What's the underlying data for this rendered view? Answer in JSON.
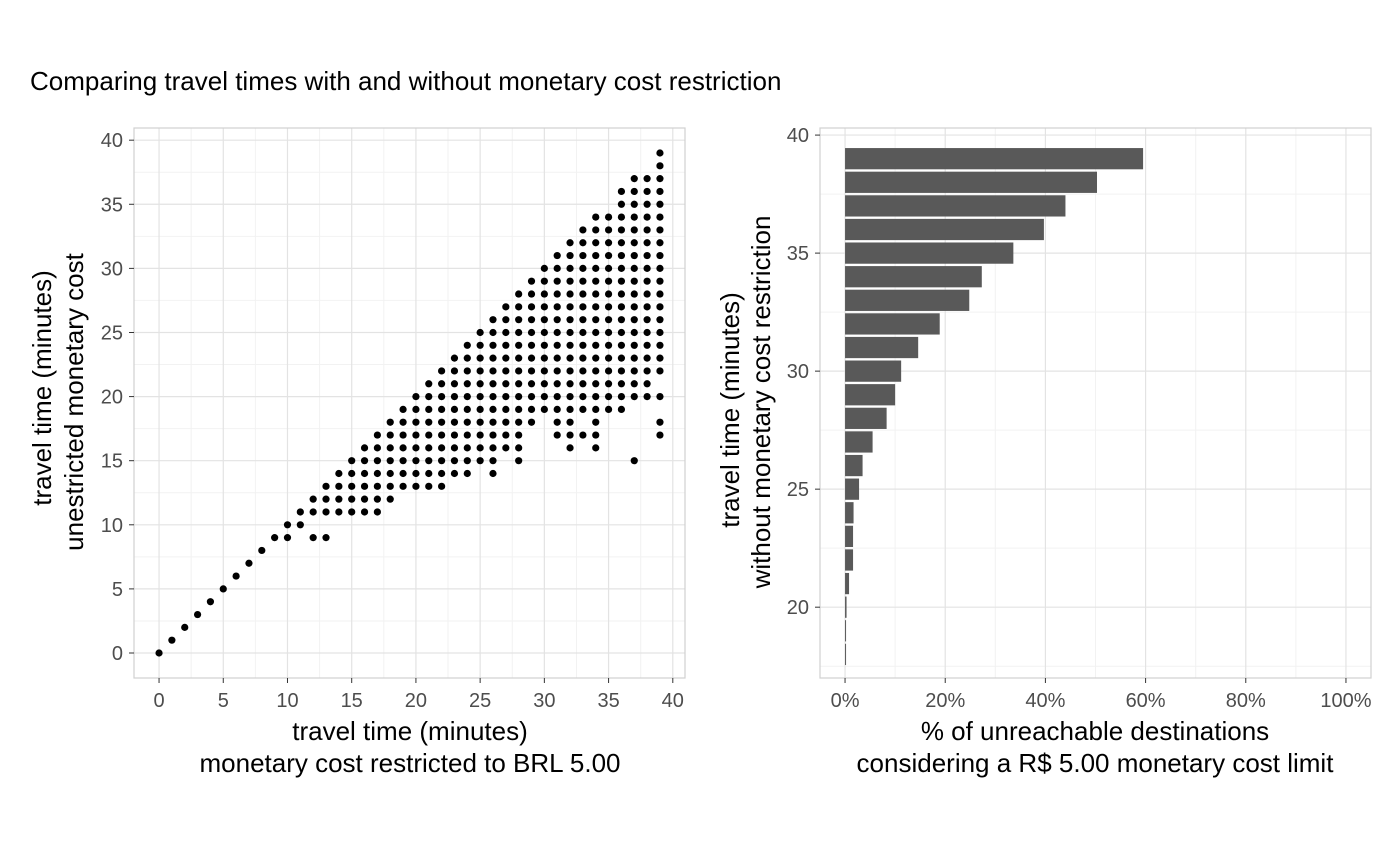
{
  "title": "Comparing travel times with and without monetary cost restriction",
  "colors": {
    "point": "#000000",
    "bar": "#595959",
    "grid_major": "#e3e3e3",
    "grid_minor": "#f2f2f2",
    "panel_border": "#d0d0d0",
    "tick_text": "#4d4d4d"
  },
  "chart_data": [
    {
      "type": "scatter",
      "xlabel_line1": "travel time (minutes)",
      "xlabel_line2": "monetary cost restricted to BRL 5.00",
      "ylabel_line1": "travel time (minutes)",
      "ylabel_line2": "unestricted monetary cost",
      "xlim": [
        -1.95,
        40.95
      ],
      "ylim": [
        -1.95,
        40.95
      ],
      "xticks": [
        0,
        5,
        10,
        15,
        20,
        25,
        30,
        35,
        40
      ],
      "yticks": [
        0,
        5,
        10,
        15,
        20,
        25,
        30,
        35,
        40
      ],
      "grid": true,
      "columns": [
        {
          "x": 0,
          "y": [
            0
          ]
        },
        {
          "x": 1,
          "y": [
            1
          ]
        },
        {
          "x": 2,
          "y": [
            2
          ]
        },
        {
          "x": 3,
          "y": [
            3
          ]
        },
        {
          "x": 4,
          "y": [
            4
          ]
        },
        {
          "x": 5,
          "y": [
            5
          ]
        },
        {
          "x": 6,
          "y": [
            6
          ]
        },
        {
          "x": 7,
          "y": [
            7
          ]
        },
        {
          "x": 8,
          "y": [
            8
          ]
        },
        {
          "x": 9,
          "y": [
            9
          ]
        },
        {
          "x": 10,
          "y": [
            9,
            10
          ]
        },
        {
          "x": 11,
          "y": [
            10,
            11
          ]
        },
        {
          "x": 12,
          "y": [
            9,
            11,
            12
          ]
        },
        {
          "x": 13,
          "y": [
            9,
            11,
            12,
            13
          ]
        },
        {
          "x": 14,
          "y": [
            11,
            12,
            13,
            14
          ]
        },
        {
          "x": 15,
          "y": [
            11,
            12,
            13,
            14,
            15
          ]
        },
        {
          "x": 16,
          "y": [
            11,
            12,
            13,
            14,
            15,
            16
          ]
        },
        {
          "x": 17,
          "y": [
            11,
            12,
            13,
            14,
            15,
            16,
            17
          ]
        },
        {
          "x": 18,
          "y": [
            12,
            13,
            14,
            15,
            16,
            17,
            18
          ]
        },
        {
          "x": 19,
          "y": [
            13,
            14,
            15,
            16,
            17,
            18,
            19
          ]
        },
        {
          "x": 20,
          "y": [
            13,
            14,
            15,
            16,
            17,
            18,
            19,
            20
          ]
        },
        {
          "x": 21,
          "y": [
            13,
            14,
            15,
            16,
            17,
            18,
            19,
            20,
            21
          ]
        },
        {
          "x": 22,
          "y": [
            13,
            14,
            15,
            16,
            17,
            18,
            19,
            20,
            21,
            22
          ]
        },
        {
          "x": 23,
          "y": [
            14,
            15,
            16,
            17,
            18,
            19,
            20,
            21,
            22,
            23
          ]
        },
        {
          "x": 24,
          "y": [
            14,
            15,
            16,
            17,
            18,
            19,
            20,
            21,
            22,
            23,
            24
          ]
        },
        {
          "x": 25,
          "y": [
            15,
            16,
            17,
            18,
            19,
            20,
            21,
            22,
            23,
            24,
            25
          ]
        },
        {
          "x": 26,
          "y": [
            14,
            15,
            16,
            17,
            18,
            19,
            20,
            21,
            22,
            23,
            24,
            25,
            26
          ]
        },
        {
          "x": 27,
          "y": [
            16,
            17,
            18,
            19,
            20,
            21,
            22,
            23,
            24,
            25,
            26,
            27
          ]
        },
        {
          "x": 28,
          "y": [
            15,
            16,
            17,
            18,
            19,
            20,
            21,
            22,
            23,
            24,
            25,
            26,
            27,
            28
          ]
        },
        {
          "x": 29,
          "y": [
            18,
            19,
            20,
            21,
            22,
            23,
            24,
            25,
            26,
            27,
            28,
            29
          ]
        },
        {
          "x": 30,
          "y": [
            19,
            20,
            21,
            22,
            23,
            24,
            25,
            26,
            27,
            28,
            29,
            30
          ]
        },
        {
          "x": 31,
          "y": [
            17,
            18,
            19,
            20,
            21,
            22,
            23,
            24,
            25,
            26,
            27,
            28,
            29,
            30,
            31
          ]
        },
        {
          "x": 32,
          "y": [
            16,
            17,
            18,
            19,
            20,
            21,
            22,
            23,
            24,
            25,
            26,
            27,
            28,
            29,
            30,
            31,
            32
          ]
        },
        {
          "x": 33,
          "y": [
            17,
            19,
            20,
            21,
            22,
            23,
            24,
            25,
            26,
            27,
            28,
            29,
            30,
            31,
            32,
            33
          ]
        },
        {
          "x": 34,
          "y": [
            16,
            17,
            18,
            19,
            20,
            21,
            22,
            23,
            24,
            25,
            26,
            27,
            28,
            29,
            30,
            31,
            32,
            33,
            34
          ]
        },
        {
          "x": 35,
          "y": [
            19,
            20,
            21,
            22,
            23,
            24,
            25,
            26,
            27,
            28,
            29,
            30,
            31,
            32,
            33,
            34
          ]
        },
        {
          "x": 36,
          "y": [
            19,
            20,
            21,
            22,
            23,
            24,
            25,
            26,
            27,
            28,
            29,
            30,
            31,
            32,
            33,
            34,
            35,
            36
          ]
        },
        {
          "x": 37,
          "y": [
            15,
            20,
            21,
            22,
            23,
            24,
            25,
            26,
            27,
            28,
            29,
            30,
            31,
            32,
            33,
            34,
            35,
            36,
            37
          ]
        },
        {
          "x": 38,
          "y": [
            20,
            21,
            22,
            23,
            24,
            25,
            26,
            27,
            28,
            29,
            30,
            31,
            32,
            33,
            34,
            35,
            36,
            37
          ]
        },
        {
          "x": 39,
          "y": [
            17,
            18,
            20,
            22,
            23,
            24,
            25,
            26,
            27,
            28,
            29,
            30,
            31,
            32,
            33,
            34,
            35,
            36,
            37,
            38,
            39
          ]
        }
      ]
    },
    {
      "type": "bar",
      "orientation": "horizontal",
      "xlabel_line1": "% of unreachable destinations",
      "xlabel_line2": "considering a R$ 5.00 monetary cost limit",
      "ylabel_line1": "travel time (minutes)",
      "ylabel_line2": "without monetary cost restriction",
      "xlim": [
        -0.05,
        1.05
      ],
      "ylim": [
        17.0,
        40.3
      ],
      "xticks": [
        0,
        0.2,
        0.4,
        0.6,
        0.8,
        1.0
      ],
      "xtick_labels": [
        "0%",
        "20%",
        "40%",
        "60%",
        "80%",
        "100%"
      ],
      "yticks": [
        20,
        25,
        30,
        35,
        40
      ],
      "grid": true,
      "categories": [
        18,
        19,
        20,
        21,
        22,
        23,
        24,
        25,
        26,
        27,
        28,
        29,
        30,
        31,
        32,
        33,
        34,
        35,
        36,
        37,
        38,
        39
      ],
      "values": [
        0.002,
        0.002,
        0.003,
        0.008,
        0.016,
        0.016,
        0.017,
        0.028,
        0.035,
        0.055,
        0.083,
        0.1,
        0.112,
        0.146,
        0.189,
        0.248,
        0.273,
        0.336,
        0.397,
        0.44,
        0.503,
        0.595
      ]
    }
  ]
}
